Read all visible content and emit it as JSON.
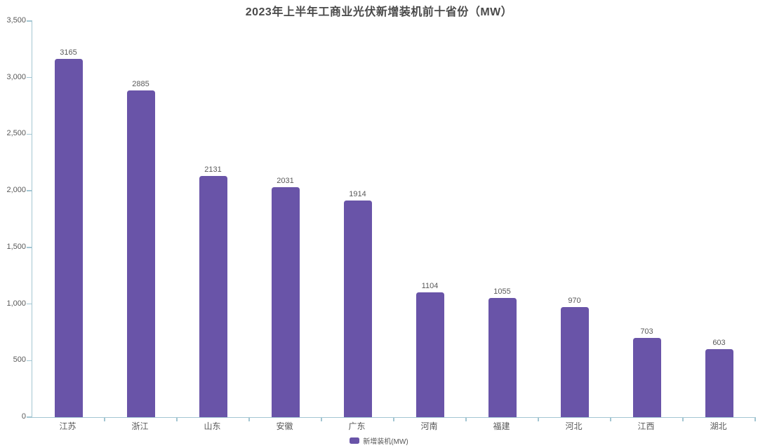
{
  "chart_data": {
    "type": "bar",
    "title": "2023年上半年工商业光伏新增装机前十省份（MW）",
    "categories": [
      "江苏",
      "浙江",
      "山东",
      "安徽",
      "广东",
      "河南",
      "福建",
      "河北",
      "江西",
      "湖北"
    ],
    "series": [
      {
        "name": "新增装机(MW)",
        "values": [
          3165,
          2885,
          2131,
          2031,
          1914,
          1104,
          1055,
          970,
          703,
          603
        ]
      }
    ],
    "xlabel": "",
    "ylabel": "",
    "ylim": [
      0,
      3500
    ],
    "ytick_interval": 500,
    "ytick_labels": [
      "0",
      "500",
      "1,000",
      "1,500",
      "2,000",
      "2,500",
      "3,000",
      "3,500"
    ],
    "grid": false,
    "data_labels_shown": true,
    "legend": {
      "position": "bottom",
      "entries": [
        "新增装机(MW)"
      ]
    },
    "colors": {
      "bar": "#6954a8",
      "axis": "#a3c6d2",
      "label_text": "#595959",
      "title_text": "#4a4a4a"
    }
  }
}
